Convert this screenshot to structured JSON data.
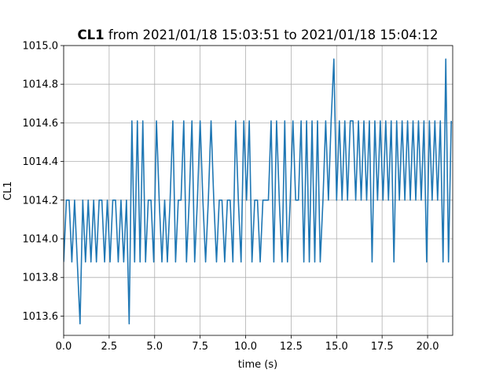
{
  "chart_data": {
    "type": "line",
    "title_name": "CL1",
    "title": "from 2021/01/18 15:03:51 to 2021/01/18 15:04:12",
    "xlabel": "time (s)",
    "ylabel": "CL1",
    "color": "#1f77b4",
    "grid": true,
    "xlim": [
      0,
      21.38
    ],
    "ylim": [
      1013.5,
      1015.0
    ],
    "xticks": [
      {
        "value": 0,
        "label": "0.0"
      },
      2.5,
      {
        "value": 5,
        "label": "5.0"
      },
      7.5,
      {
        "value": 10,
        "label": "10.0"
      },
      12.5,
      {
        "value": 15,
        "label": "15.0"
      },
      17.5,
      {
        "value": 20,
        "label": "20.0"
      }
    ],
    "yticks": [
      1013.6,
      1013.8,
      {
        "value": 1014,
        "label": "1014.0"
      },
      1014.2,
      1014.4,
      1014.6,
      1014.8,
      {
        "value": 1015,
        "label": "1015.0"
      }
    ],
    "x": [
      0,
      0.15,
      0.3,
      0.45,
      0.6,
      0.75,
      0.9,
      1.05,
      1.2,
      1.35,
      1.5,
      1.65,
      1.8,
      1.95,
      2.1,
      2.25,
      2.4,
      2.55,
      2.7,
      2.85,
      3,
      3.15,
      3.3,
      3.45,
      3.6,
      3.75,
      3.9,
      4.05,
      4.2,
      4.35,
      4.5,
      4.65,
      4.8,
      4.95,
      5.1,
      5.25,
      5.4,
      5.55,
      5.7,
      5.85,
      6,
      6.15,
      6.3,
      6.45,
      6.6,
      6.75,
      6.9,
      7.05,
      7.2,
      7.35,
      7.5,
      7.65,
      7.8,
      7.95,
      8.1,
      8.25,
      8.4,
      8.55,
      8.7,
      8.85,
      9,
      9.15,
      9.3,
      9.45,
      9.6,
      9.75,
      9.9,
      10.05,
      10.2,
      10.35,
      10.5,
      10.65,
      10.8,
      10.95,
      11.1,
      11.25,
      11.4,
      11.55,
      11.7,
      11.85,
      12,
      12.15,
      12.3,
      12.45,
      12.6,
      12.75,
      12.9,
      13.05,
      13.2,
      13.35,
      13.5,
      13.65,
      13.8,
      13.95,
      14.1,
      14.25,
      14.4,
      14.55,
      14.7,
      14.85,
      15,
      15.15,
      15.3,
      15.45,
      15.6,
      15.75,
      15.9,
      16.05,
      16.2,
      16.35,
      16.5,
      16.65,
      16.8,
      16.95,
      17.1,
      17.25,
      17.4,
      17.55,
      17.7,
      17.85,
      18,
      18.15,
      18.3,
      18.45,
      18.6,
      18.75,
      18.9,
      19.05,
      19.2,
      19.35,
      19.5,
      19.65,
      19.8,
      19.95,
      20.1,
      20.25,
      20.4,
      20.55,
      20.7,
      20.85,
      21,
      21.15,
      21.3
    ],
    "values": [
      1013.88,
      1014.2,
      1014.2,
      1013.88,
      1014.2,
      1013.88,
      1013.56,
      1014.2,
      1013.88,
      1014.2,
      1013.88,
      1014.2,
      1013.88,
      1014.2,
      1014.2,
      1013.88,
      1014.2,
      1013.88,
      1014.2,
      1014.2,
      1013.88,
      1014.2,
      1013.88,
      1014.2,
      1013.56,
      1014.61,
      1013.88,
      1014.61,
      1013.88,
      1014.61,
      1013.88,
      1014.2,
      1014.2,
      1013.88,
      1014.61,
      1014.2,
      1013.88,
      1014.2,
      1013.88,
      1014.2,
      1014.61,
      1013.88,
      1014.2,
      1014.2,
      1014.61,
      1013.88,
      1014.2,
      1014.61,
      1013.88,
      1014.2,
      1014.61,
      1014.2,
      1013.88,
      1014.2,
      1014.61,
      1014.2,
      1013.88,
      1014.2,
      1014.2,
      1013.88,
      1014.2,
      1014.2,
      1013.88,
      1014.61,
      1014.2,
      1013.88,
      1014.61,
      1014.2,
      1014.61,
      1013.88,
      1014.2,
      1014.2,
      1013.88,
      1014.2,
      1014.2,
      1014.2,
      1014.61,
      1013.88,
      1014.61,
      1014.2,
      1013.88,
      1014.61,
      1013.88,
      1014.2,
      1014.61,
      1014.2,
      1014.2,
      1014.61,
      1013.88,
      1014.61,
      1013.88,
      1014.61,
      1013.88,
      1014.61,
      1013.88,
      1014.2,
      1014.61,
      1014.2,
      1014.61,
      1014.93,
      1014.2,
      1014.61,
      1014.2,
      1014.61,
      1014.2,
      1014.61,
      1014.61,
      1014.2,
      1014.61,
      1014.2,
      1014.61,
      1014.2,
      1014.61,
      1013.88,
      1014.61,
      1014.2,
      1014.61,
      1014.2,
      1014.61,
      1014.2,
      1014.61,
      1013.88,
      1014.61,
      1014.2,
      1014.61,
      1014.2,
      1014.61,
      1014.2,
      1014.61,
      1014.2,
      1014.61,
      1014.2,
      1014.61,
      1013.88,
      1014.61,
      1014.2,
      1014.61,
      1014.2,
      1014.61,
      1013.88,
      1014.93,
      1013.88,
      1014.61
    ]
  }
}
